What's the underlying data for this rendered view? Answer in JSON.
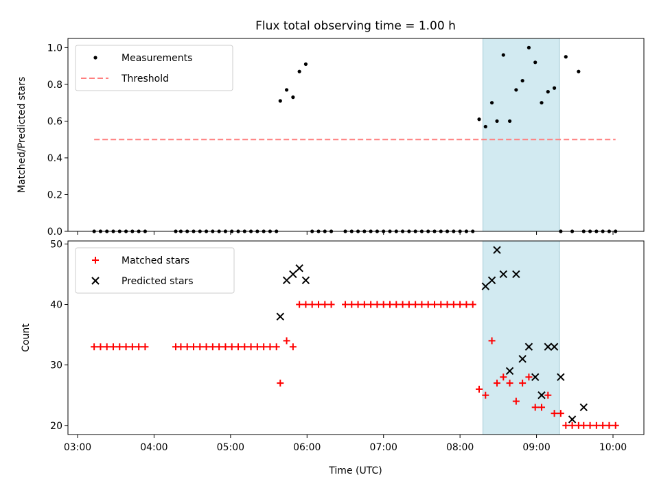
{
  "title": "Flux total observing time = 1.00 h",
  "x_ticks": [
    "03:00",
    "04:00",
    "05:00",
    "06:00",
    "07:00",
    "08:00",
    "09:00",
    "10:00"
  ],
  "xlabel": "Time (UTC)",
  "colors": {
    "measurements": "#000000",
    "threshold": "#ff7f7f",
    "matched": "#ff0000",
    "predicted": "#000000",
    "highlight": "#add8e6"
  },
  "chart_data": [
    {
      "type": "scatter",
      "panel": "top",
      "ylabel": "Matched/Predicted stars",
      "ylim": [
        0,
        1.05
      ],
      "yticks": [
        "0.0",
        "0.2",
        "0.4",
        "0.6",
        "0.8",
        "1.0"
      ],
      "xlim": [
        "03:00",
        "10:30"
      ],
      "legend_position": "upper-left",
      "highlight_span": [
        "08:18",
        "09:18"
      ],
      "series": [
        {
          "name": "Measurements",
          "x": [
            "03:13",
            "03:18",
            "03:23",
            "03:28",
            "03:33",
            "03:38",
            "03:43",
            "03:48",
            "03:53",
            "04:17",
            "04:21",
            "04:26",
            "04:31",
            "04:36",
            "04:41",
            "04:46",
            "04:51",
            "04:56",
            "05:01",
            "05:06",
            "05:11",
            "05:16",
            "05:21",
            "05:26",
            "05:31",
            "05:36",
            "05:39",
            "05:44",
            "05:49",
            "05:54",
            "05:59",
            "06:04",
            "06:09",
            "06:14",
            "06:19",
            "06:30",
            "06:35",
            "06:40",
            "06:45",
            "06:50",
            "06:55",
            "07:00",
            "07:05",
            "07:10",
            "07:15",
            "07:20",
            "07:25",
            "07:30",
            "07:35",
            "07:40",
            "07:45",
            "07:50",
            "07:55",
            "08:00",
            "08:05",
            "08:10",
            "08:15",
            "08:20",
            "08:25",
            "08:29",
            "08:34",
            "08:39",
            "08:44",
            "08:49",
            "08:54",
            "08:59",
            "09:04",
            "09:09",
            "09:14",
            "09:19",
            "09:23",
            "09:28",
            "09:33",
            "09:37",
            "09:42",
            "09:47",
            "09:52",
            "09:57",
            "10:02"
          ],
          "y": [
            0,
            0,
            0,
            0,
            0,
            0,
            0,
            0,
            0,
            0,
            0,
            0,
            0,
            0,
            0,
            0,
            0,
            0,
            0,
            0,
            0,
            0,
            0,
            0,
            0,
            0,
            0.71,
            0.77,
            0.73,
            0.87,
            0.91,
            0,
            0,
            0,
            0,
            0,
            0,
            0,
            0,
            0,
            0,
            0,
            0,
            0,
            0,
            0,
            0,
            0,
            0,
            0,
            0,
            0,
            0,
            0,
            0,
            0,
            0.61,
            0.57,
            0.7,
            0.6,
            0.96,
            0.6,
            0.77,
            0.82,
            1.0,
            0.92,
            0.7,
            0.76,
            0.78,
            0,
            0.95,
            0,
            0.87,
            0,
            0,
            0,
            0,
            0,
            0
          ]
        },
        {
          "name": "Threshold",
          "x": [
            "03:13",
            "10:02"
          ],
          "y": [
            0.5,
            0.5
          ]
        }
      ]
    },
    {
      "type": "scatter",
      "panel": "bottom",
      "ylabel": "Count",
      "ylim": [
        18.5,
        50.5
      ],
      "yticks": [
        "20",
        "30",
        "40",
        "50"
      ],
      "xlim": [
        "03:00",
        "10:30"
      ],
      "legend_position": "upper-left",
      "highlight_span": [
        "08:18",
        "09:18"
      ],
      "series": [
        {
          "name": "Matched stars",
          "marker": "+",
          "x": [
            "03:13",
            "03:18",
            "03:23",
            "03:28",
            "03:33",
            "03:38",
            "03:43",
            "03:48",
            "03:53",
            "04:17",
            "04:21",
            "04:26",
            "04:31",
            "04:36",
            "04:41",
            "04:46",
            "04:51",
            "04:56",
            "05:01",
            "05:06",
            "05:11",
            "05:16",
            "05:21",
            "05:26",
            "05:31",
            "05:36",
            "05:39",
            "05:44",
            "05:49",
            "05:54",
            "05:59",
            "06:04",
            "06:09",
            "06:14",
            "06:19",
            "06:30",
            "06:35",
            "06:40",
            "06:45",
            "06:50",
            "06:55",
            "07:00",
            "07:05",
            "07:10",
            "07:15",
            "07:20",
            "07:25",
            "07:30",
            "07:35",
            "07:40",
            "07:45",
            "07:50",
            "07:55",
            "08:00",
            "08:05",
            "08:10",
            "08:15",
            "08:20",
            "08:25",
            "08:29",
            "08:34",
            "08:39",
            "08:44",
            "08:49",
            "08:54",
            "08:59",
            "09:04",
            "09:09",
            "09:14",
            "09:19",
            "09:23",
            "09:28",
            "09:33",
            "09:37",
            "09:42",
            "09:47",
            "09:52",
            "09:57",
            "10:02"
          ],
          "y": [
            33,
            33,
            33,
            33,
            33,
            33,
            33,
            33,
            33,
            33,
            33,
            33,
            33,
            33,
            33,
            33,
            33,
            33,
            33,
            33,
            33,
            33,
            33,
            33,
            33,
            33,
            27,
            34,
            33,
            40,
            40,
            40,
            40,
            40,
            40,
            40,
            40,
            40,
            40,
            40,
            40,
            40,
            40,
            40,
            40,
            40,
            40,
            40,
            40,
            40,
            40,
            40,
            40,
            40,
            40,
            40,
            26,
            25,
            34,
            27,
            28,
            27,
            24,
            27,
            28,
            23,
            23,
            25,
            22,
            22,
            20,
            20,
            20,
            20,
            20,
            20,
            20,
            20,
            20
          ]
        },
        {
          "name": "Predicted stars",
          "marker": "x",
          "x": [
            "05:39",
            "05:44",
            "05:49",
            "05:54",
            "05:59",
            "08:20",
            "08:25",
            "08:29",
            "08:34",
            "08:39",
            "08:44",
            "08:49",
            "08:54",
            "08:59",
            "09:04",
            "09:09",
            "09:14",
            "09:19",
            "09:28",
            "09:37"
          ],
          "y": [
            38,
            44,
            45,
            46,
            44,
            43,
            44,
            49,
            45,
            29,
            45,
            31,
            33,
            28,
            25,
            33,
            33,
            28,
            21,
            23
          ]
        }
      ]
    }
  ]
}
